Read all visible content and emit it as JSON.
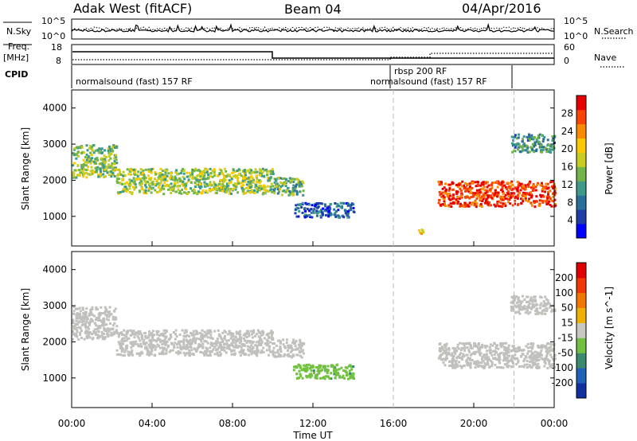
{
  "header": {
    "station": "Adak West (fitACF)",
    "beam": "Beam 04",
    "date": "04/Apr/2016"
  },
  "top_panels": {
    "nsky_label": "N.Sky",
    "nsky_ticks": [
      "10^5",
      "10^0"
    ],
    "nsearch_label": "N.Search",
    "nsearch_ticks": [
      "10^5",
      "10^0"
    ],
    "freq_label_1": "Freq.",
    "freq_label_2": "[MHz]",
    "freq_ticks": [
      "18",
      "8"
    ],
    "nave_label": "Nave",
    "nave_ticks": [
      "60",
      "0"
    ],
    "cpid_label": "CPID",
    "cpid_segments": [
      {
        "label": "normalsound (fast) 157 RF",
        "start_hour": 0,
        "end_hour": 16
      },
      {
        "label": "rbsp 200 RF",
        "start_hour": 16,
        "end_hour": 22
      },
      {
        "label": "normalsound (fast) 157 RF",
        "start_hour": 16,
        "end_hour": 22
      }
    ]
  },
  "colors": {
    "frame": "#000000",
    "dashed_marker": "#bbbbbb",
    "ground_scatter": "#c0c0bc"
  },
  "chart_data": [
    {
      "type": "heatmap",
      "title": "Power",
      "xlabel": "",
      "ylabel": "Slant Range [km]",
      "xlim": [
        0,
        24
      ],
      "ylim": [
        180,
        4500
      ],
      "y_ticks": [
        "4000",
        "3000",
        "2000",
        "1000"
      ],
      "colorbar": {
        "label": "Power [dB]",
        "ticks": [
          "28",
          "24",
          "20",
          "16",
          "12",
          "8",
          "4"
        ],
        "range": [
          0,
          30
        ],
        "colors": [
          "#0000ff",
          "#1f3ca8",
          "#2a6e9a",
          "#3d9a8a",
          "#72b34a",
          "#c8cc20",
          "#f8ca00",
          "#fb8a00",
          "#f84400",
          "#e80000"
        ]
      },
      "bands": [
        {
          "start_hour": 0.0,
          "end_hour": 2.2,
          "range_km": [
            2100,
            3000
          ],
          "value": 14
        },
        {
          "start_hour": 2.2,
          "end_hour": 10.0,
          "range_km": [
            1650,
            2350
          ],
          "value": 15
        },
        {
          "start_hour": 10.0,
          "end_hour": 11.5,
          "range_km": [
            1600,
            2100
          ],
          "value": 12
        },
        {
          "start_hour": 11.0,
          "end_hour": 14.0,
          "range_km": [
            1000,
            1400
          ],
          "value": 6
        },
        {
          "start_hour": 17.2,
          "end_hour": 17.6,
          "range_km": [
            550,
            700
          ],
          "value": 20
        },
        {
          "start_hour": 18.2,
          "end_hour": 24.0,
          "range_km": [
            1300,
            2000
          ],
          "value": 26
        },
        {
          "start_hour": 21.8,
          "end_hour": 24.0,
          "range_km": [
            2800,
            3300
          ],
          "value": 10
        }
      ]
    },
    {
      "type": "heatmap",
      "title": "Velocity",
      "xlabel": "Time UT",
      "ylabel": "Slant Range [km]",
      "xlim": [
        0,
        24
      ],
      "ylim": [
        180,
        4500
      ],
      "x_ticks": [
        "00:00",
        "04:00",
        "08:00",
        "12:00",
        "16:00",
        "20:00",
        "00:00"
      ],
      "y_ticks": [
        "4000",
        "3000",
        "2000",
        "1000"
      ],
      "colorbar": {
        "label": "Velocity [m s^-1]",
        "ticks": [
          "200",
          "100",
          "50",
          "15",
          "-15",
          "-50",
          "-100",
          "-200"
        ],
        "range": [
          -250,
          250
        ],
        "colors": [
          "#1030a0",
          "#2060b8",
          "#3a8a70",
          "#72c040",
          "#c8c8c0",
          "#f0b000",
          "#f07800",
          "#f03800",
          "#e00000"
        ]
      },
      "bands": [
        {
          "start_hour": 0.0,
          "end_hour": 2.2,
          "range_km": [
            2100,
            3000
          ],
          "value": 0
        },
        {
          "start_hour": 2.2,
          "end_hour": 10.0,
          "range_km": [
            1650,
            2350
          ],
          "value": 0
        },
        {
          "start_hour": 10.0,
          "end_hour": 11.5,
          "range_km": [
            1600,
            2100
          ],
          "value": 0
        },
        {
          "start_hour": 11.0,
          "end_hour": 14.0,
          "range_km": [
            1000,
            1400
          ],
          "value": -70
        },
        {
          "start_hour": 18.2,
          "end_hour": 24.0,
          "range_km": [
            1300,
            2000
          ],
          "value": 0
        },
        {
          "start_hour": 21.8,
          "end_hour": 24.0,
          "range_km": [
            2800,
            3300
          ],
          "value": 0
        }
      ]
    }
  ],
  "time_axis": {
    "ticks": [
      "00:00",
      "04:00",
      "08:00",
      "12:00",
      "16:00",
      "20:00",
      "00:00"
    ],
    "label": "Time UT",
    "markers_hour": [
      16,
      22
    ]
  }
}
